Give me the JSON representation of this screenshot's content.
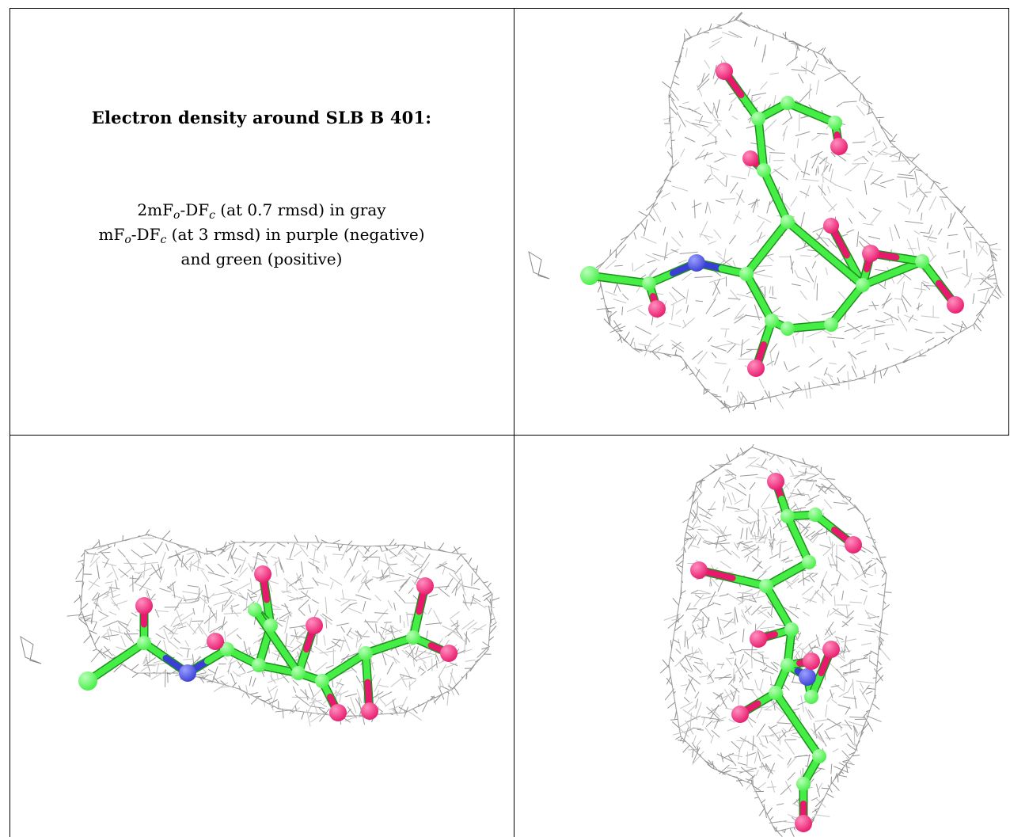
{
  "heading": "Electron density around SLB B 401:",
  "legend": {
    "line1": {
      "pre": "2mF",
      "sub1": "o",
      "mid": "-DF",
      "sub2": "c",
      "post": " (at 0.7 rmsd) in gray"
    },
    "line2": {
      "pre": "mF",
      "sub1": "o",
      "mid": "-DF",
      "sub2": "c",
      "post": " (at 3 rmsd) in purple (negative)"
    },
    "line3": "and green (positive)"
  },
  "colors": {
    "carbon": "#44ee44",
    "oxygen": "#e8186c",
    "nitrogen": "#3a3ed4",
    "mesh": "#8a8a8a",
    "grid_lines": "#000000"
  },
  "views": [
    "view-top-right",
    "view-bottom-left",
    "view-bottom-right"
  ]
}
